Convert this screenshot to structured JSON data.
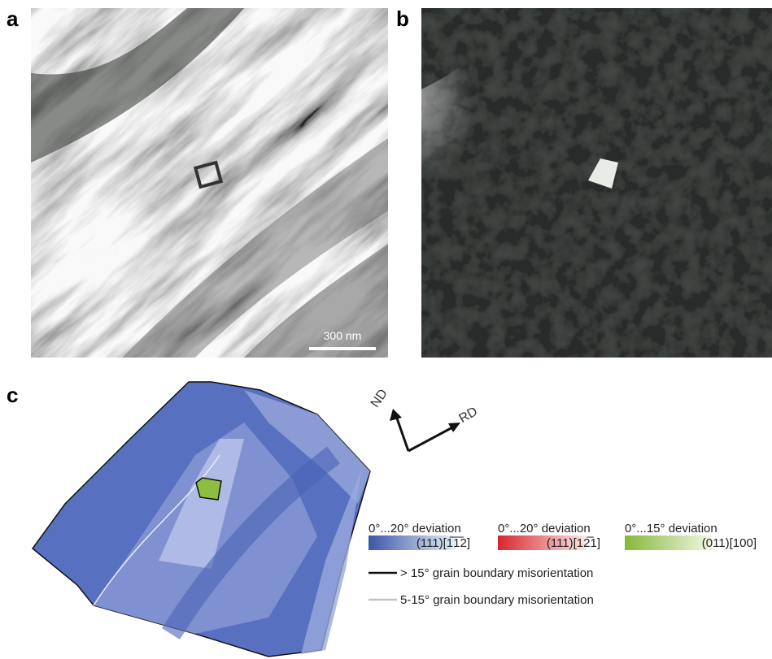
{
  "panels": {
    "a": {
      "label": "a",
      "scale_bar": "300 nm"
    },
    "b": {
      "label": "b"
    },
    "c": {
      "label": "c",
      "directions": {
        "nd": "ND",
        "rd": "RD"
      },
      "legend": {
        "orientations": [
          {
            "deviation": "0°...20° deviation",
            "component": "(111)[1̅1̅2]"
          },
          {
            "deviation": "0°...20° deviation",
            "component": "(111)[12̅1]"
          },
          {
            "deviation": "0°...15° deviation",
            "component": "(011)[100]"
          }
        ],
        "boundaries": [
          "> 15° grain boundary misorientation",
          "5-15° grain boundary misorientation"
        ]
      }
    }
  }
}
